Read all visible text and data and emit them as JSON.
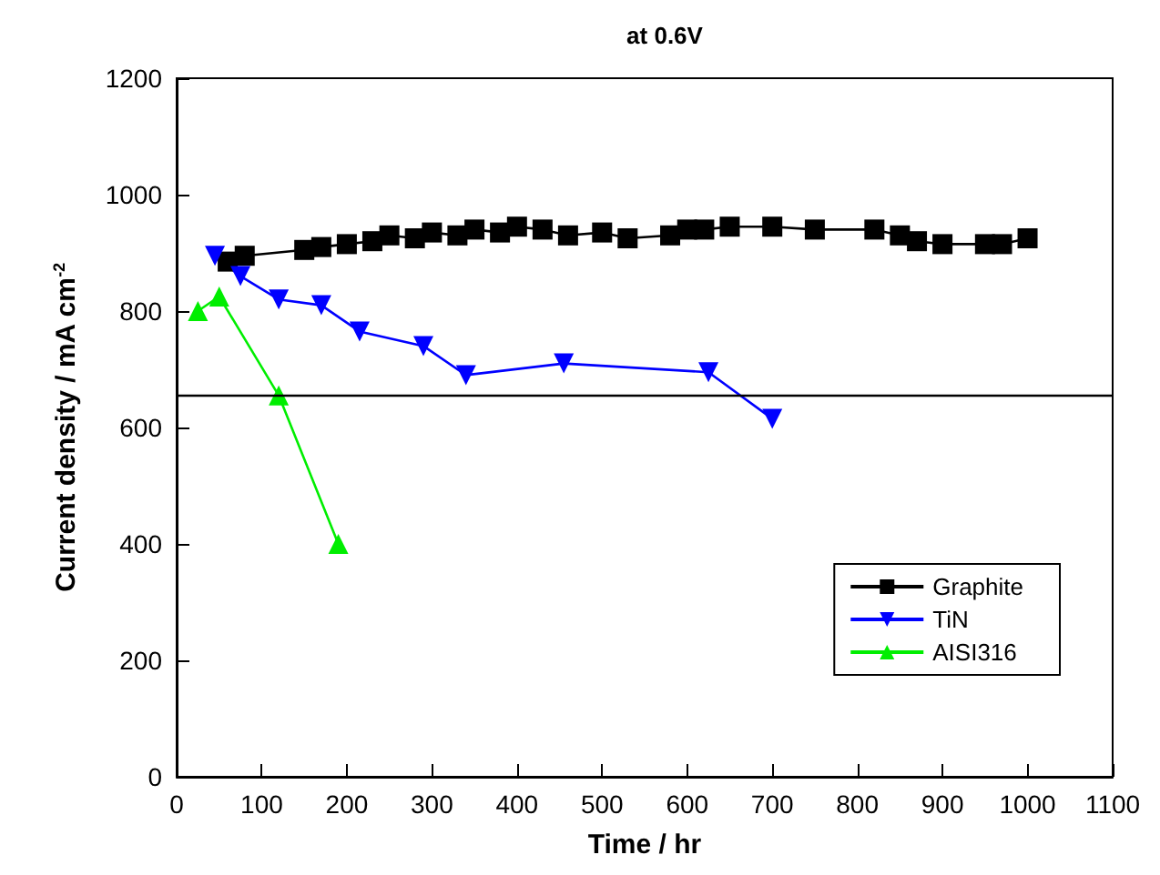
{
  "chart_data": {
    "type": "line",
    "title": "at 0.6V",
    "xlabel": "Time / hr",
    "ylabel": "Current density / mA cm$^{-2}$",
    "xlim": [
      0,
      1100
    ],
    "xticks": [
      0,
      100,
      200,
      300,
      400,
      500,
      600,
      700,
      800,
      900,
      1000,
      1100
    ],
    "ylim": [
      0,
      1200
    ],
    "yticks": [
      0,
      200,
      400,
      600,
      800,
      1000,
      1200
    ],
    "grid": false,
    "legend": "bottom right",
    "ref_lines": [
      {
        "axis": "y",
        "value": 655,
        "color": "#000000",
        "line_style": "solid"
      }
    ],
    "series": [
      {
        "name": "Graphite",
        "color": "#000000",
        "marker": "square",
        "x": [
          60,
          80,
          150,
          170,
          200,
          230,
          250,
          280,
          300,
          330,
          350,
          380,
          400,
          430,
          460,
          500,
          530,
          580,
          600,
          620,
          650,
          700,
          750,
          820,
          850,
          870,
          900,
          950,
          970,
          1000
        ],
        "values": [
          885,
          895,
          905,
          910,
          915,
          920,
          930,
          925,
          935,
          930,
          940,
          935,
          945,
          940,
          930,
          935,
          925,
          930,
          940,
          940,
          945,
          945,
          940,
          940,
          930,
          920,
          915,
          915,
          915,
          925
        ]
      },
      {
        "name": "TiN",
        "color": "#0000ff",
        "marker": "triangle-down",
        "x": [
          45,
          75,
          120,
          170,
          215,
          290,
          340,
          455,
          625,
          700
        ],
        "values": [
          895,
          860,
          820,
          810,
          765,
          740,
          690,
          710,
          695,
          615
        ]
      },
      {
        "name": "AISI316",
        "color": "#00ee00",
        "marker": "triangle",
        "x": [
          25,
          50,
          120,
          190
        ],
        "values": [
          800,
          825,
          655,
          400
        ]
      }
    ]
  }
}
